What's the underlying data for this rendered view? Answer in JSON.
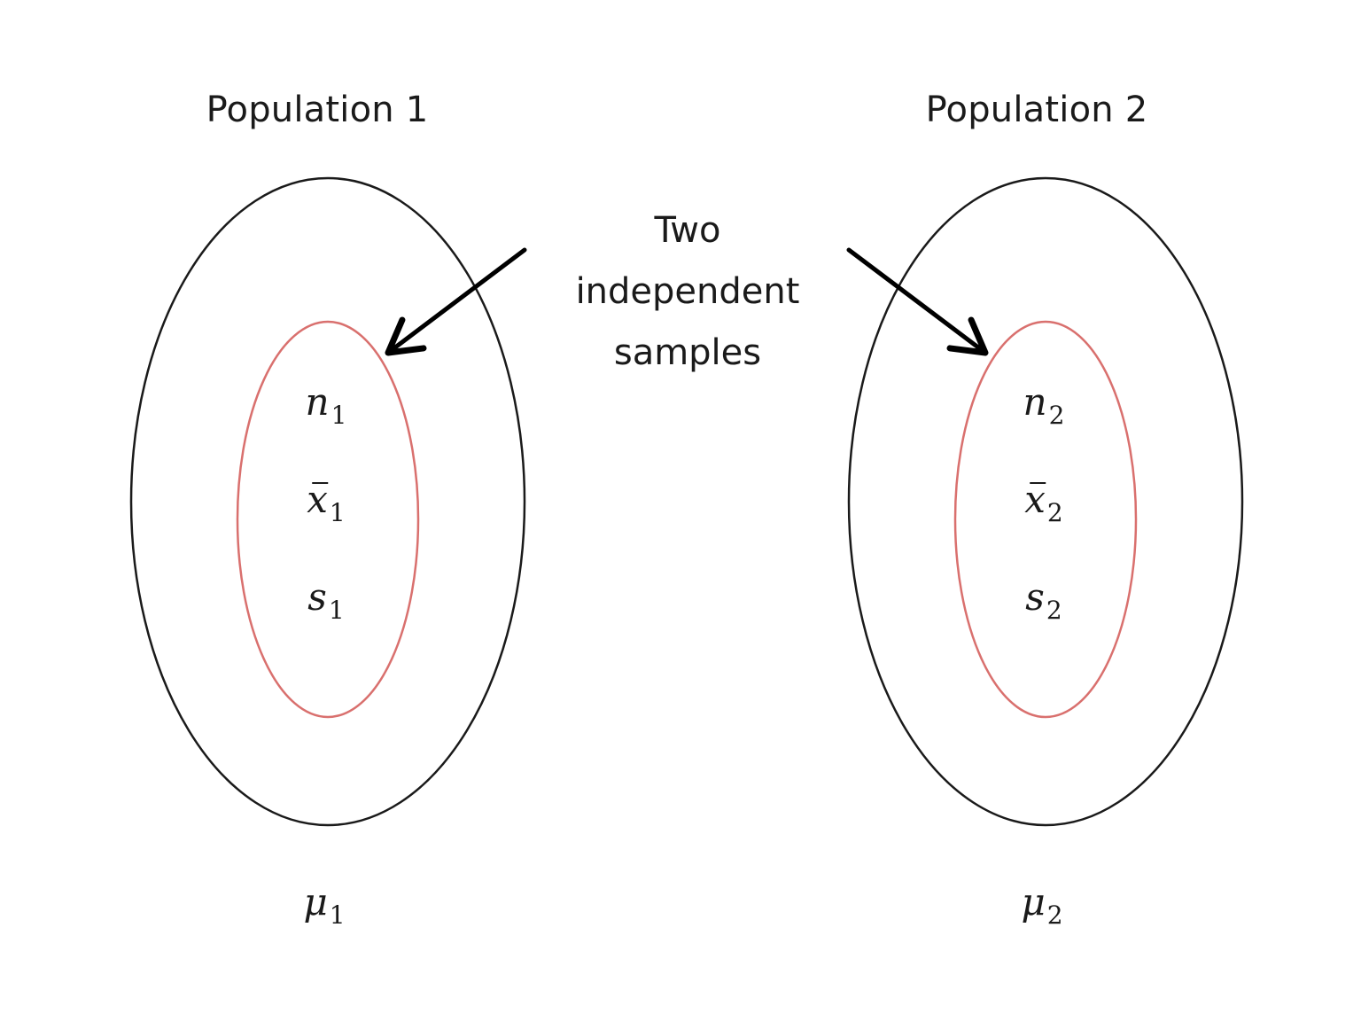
{
  "colors": {
    "population_outline": "#1a1a1a",
    "sample_outline": "#d9706e",
    "arrow": "#000000",
    "text": "#1a1a1a"
  },
  "population1": {
    "title": "Population 1",
    "sample": {
      "n": {
        "symbol": "n",
        "subscript": "1"
      },
      "xbar": {
        "symbol": "x",
        "subscript": "1"
      },
      "s": {
        "symbol": "s",
        "subscript": "1"
      }
    },
    "mu": {
      "symbol": "μ",
      "subscript": "1"
    }
  },
  "population2": {
    "title": "Population 2",
    "sample": {
      "n": {
        "symbol": "n",
        "subscript": "2"
      },
      "xbar": {
        "symbol": "x",
        "subscript": "2"
      },
      "s": {
        "symbol": "s",
        "subscript": "2"
      }
    },
    "mu": {
      "symbol": "μ",
      "subscript": "2"
    }
  },
  "samples_label": {
    "lines": [
      "Two",
      "independent",
      "samples"
    ]
  }
}
